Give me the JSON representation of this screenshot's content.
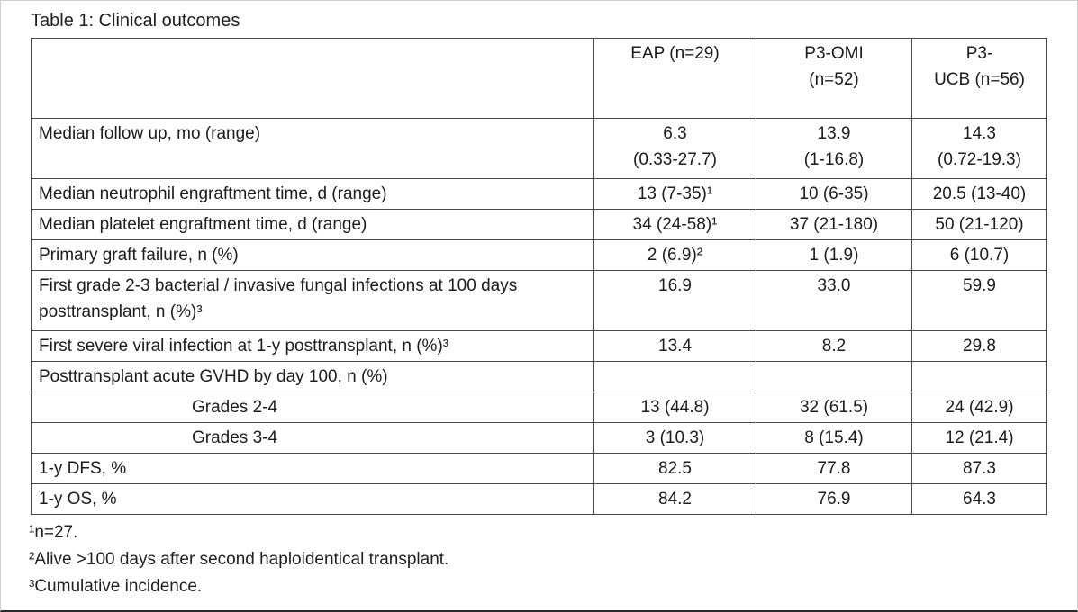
{
  "title": "Table 1: Clinical outcomes",
  "table": {
    "header": [
      "",
      "EAP (n=29)",
      "P3-OMI\n(n=52)",
      "P3-\nUCB (n=56)"
    ],
    "rows": [
      {
        "label": "Median follow up, mo (range)",
        "values": [
          "6.3\n(0.33-27.7)",
          "13.9\n(1-16.8)",
          "14.3\n(0.72-19.3)"
        ]
      },
      {
        "label": "Median neutrophil engraftment time, d (range)",
        "values": [
          "13 (7-35)¹",
          "10 (6-35)",
          "20.5 (13-40)"
        ]
      },
      {
        "label": "Median platelet engraftment time, d (range)",
        "values": [
          "34 (24-58)¹",
          "37 (21-180)",
          "50 (21-120)"
        ]
      },
      {
        "label": "Primary graft failure, n (%)",
        "values": [
          "2 (6.9)²",
          "1 (1.9)",
          "6 (10.7)"
        ]
      },
      {
        "label": "First grade 2-3 bacterial / invasive fungal infections at 100 days posttransplant, n (%)³",
        "values": [
          "16.9",
          "33.0",
          "59.9"
        ]
      },
      {
        "label": "First severe viral infection at 1-y posttransplant, n (%)³",
        "values": [
          "13.4",
          "8.2",
          "29.8"
        ]
      },
      {
        "label": "Posttransplant acute GVHD by day 100, n (%)",
        "values": [
          "",
          "",
          ""
        ]
      },
      {
        "label": "Grades 2-4",
        "values": [
          "13 (44.8)",
          "32 (61.5)",
          "24 (42.9)"
        ]
      },
      {
        "label": "Grades 3-4",
        "values": [
          "3 (10.3)",
          "8 (15.4)",
          "12 (21.4)"
        ]
      },
      {
        "label": "1-y DFS, %",
        "values": [
          "82.5",
          "77.8",
          "87.3"
        ]
      },
      {
        "label": "1-y OS, %",
        "values": [
          "84.2",
          "76.9",
          "64.3"
        ]
      }
    ]
  },
  "footnotes": [
    "¹n=27.",
    "²Alive >100 days after second haploidentical transplant.",
    "³Cumulative incidence."
  ]
}
